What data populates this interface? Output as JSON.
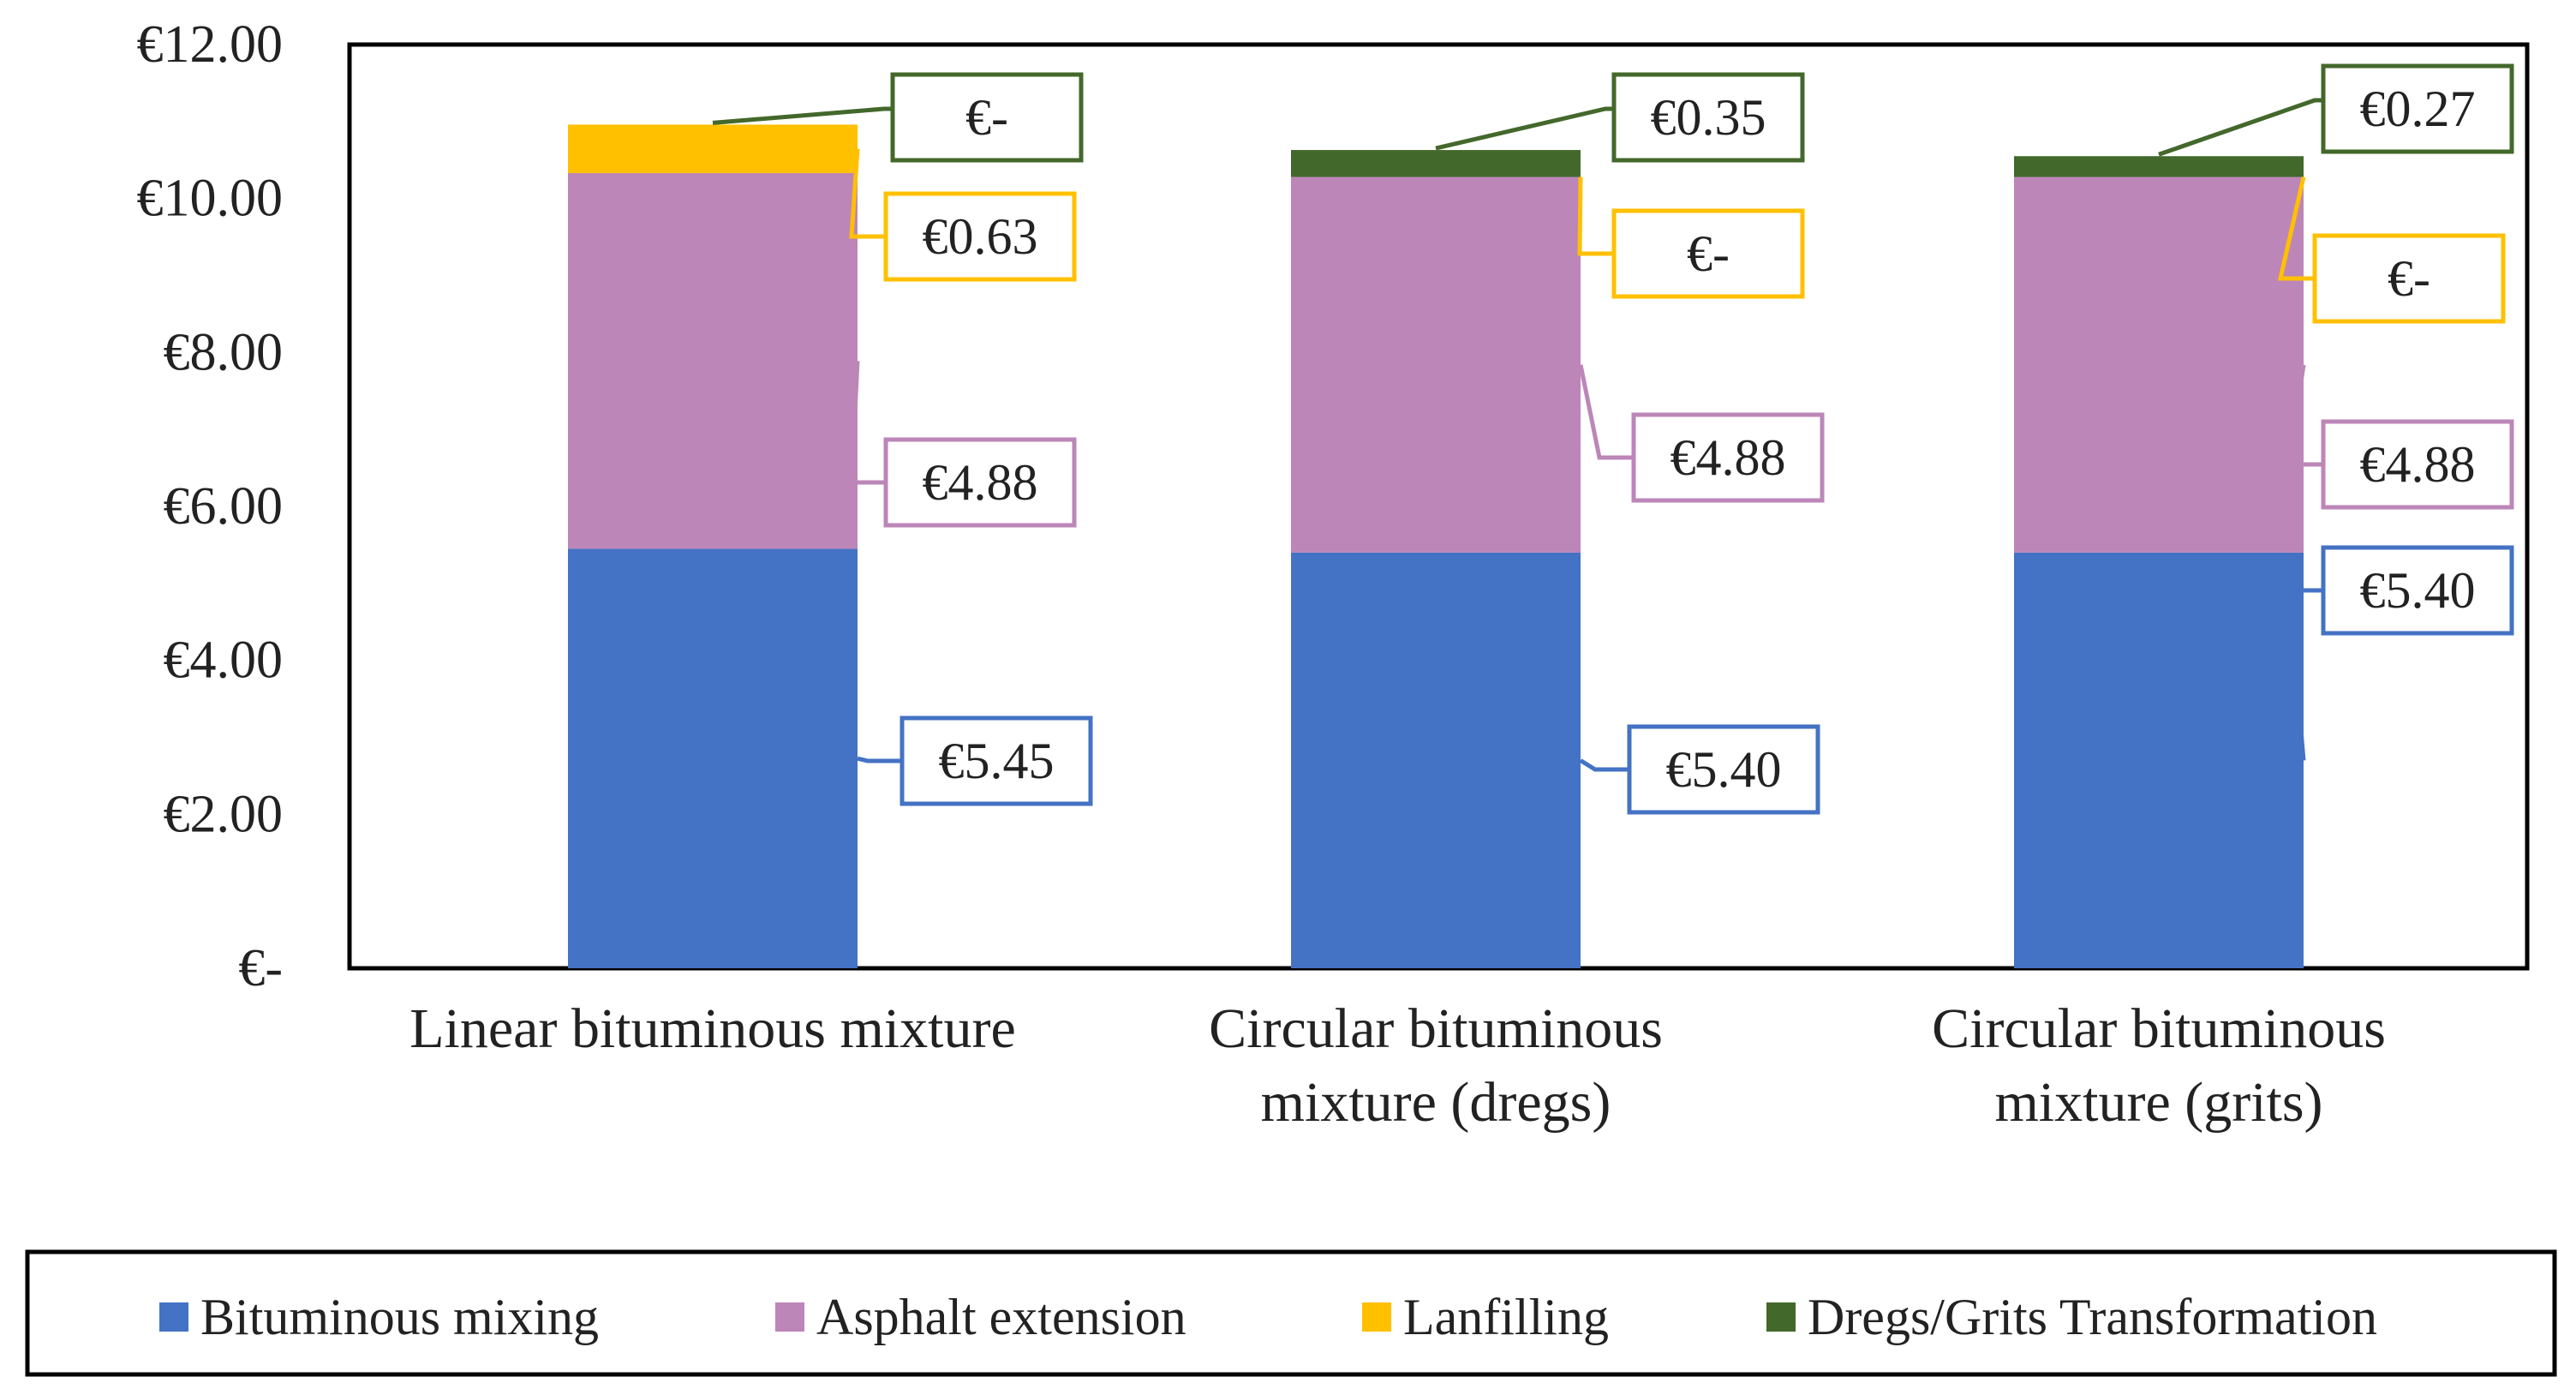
{
  "chart_data": {
    "type": "bar",
    "stacked": true,
    "categories": [
      [
        "Linear bituminous mixture"
      ],
      [
        "Circular bituminous",
        "mixture (dregs)"
      ],
      [
        "Circular bituminous",
        "mixture (grits)"
      ]
    ],
    "series": [
      {
        "name": "Bituminous mixing",
        "color": "#4472C4",
        "values": [
          5.45,
          5.4,
          5.4
        ],
        "labels": [
          "€5.45",
          "€5.40",
          "€5.40"
        ]
      },
      {
        "name": "Asphalt extension",
        "color": "#BC86B8",
        "values": [
          4.88,
          4.88,
          4.88
        ],
        "labels": [
          "€4.88",
          "€4.88",
          "€4.88"
        ]
      },
      {
        "name": "Lanfilling",
        "color": "#FFC000",
        "values": [
          0.63,
          0,
          0
        ],
        "labels": [
          "€0.63",
          "€-",
          "€-"
        ]
      },
      {
        "name": "Dregs/Grits Transformation",
        "color": "#43682B",
        "values": [
          0,
          0.35,
          0.27
        ],
        "labels": [
          "€-",
          "€0.35",
          "€0.27"
        ]
      }
    ],
    "y_ticks": [
      0,
      2,
      4,
      6,
      8,
      10,
      12
    ],
    "y_tick_labels": [
      "€-",
      "€2.00",
      "€4.00",
      "€6.00",
      "€8.00",
      "€10.00",
      "€12.00"
    ],
    "ylim": [
      0,
      12
    ],
    "title": "",
    "xlabel": "",
    "ylabel": "",
    "grid": false,
    "legend_position": "bottom"
  }
}
